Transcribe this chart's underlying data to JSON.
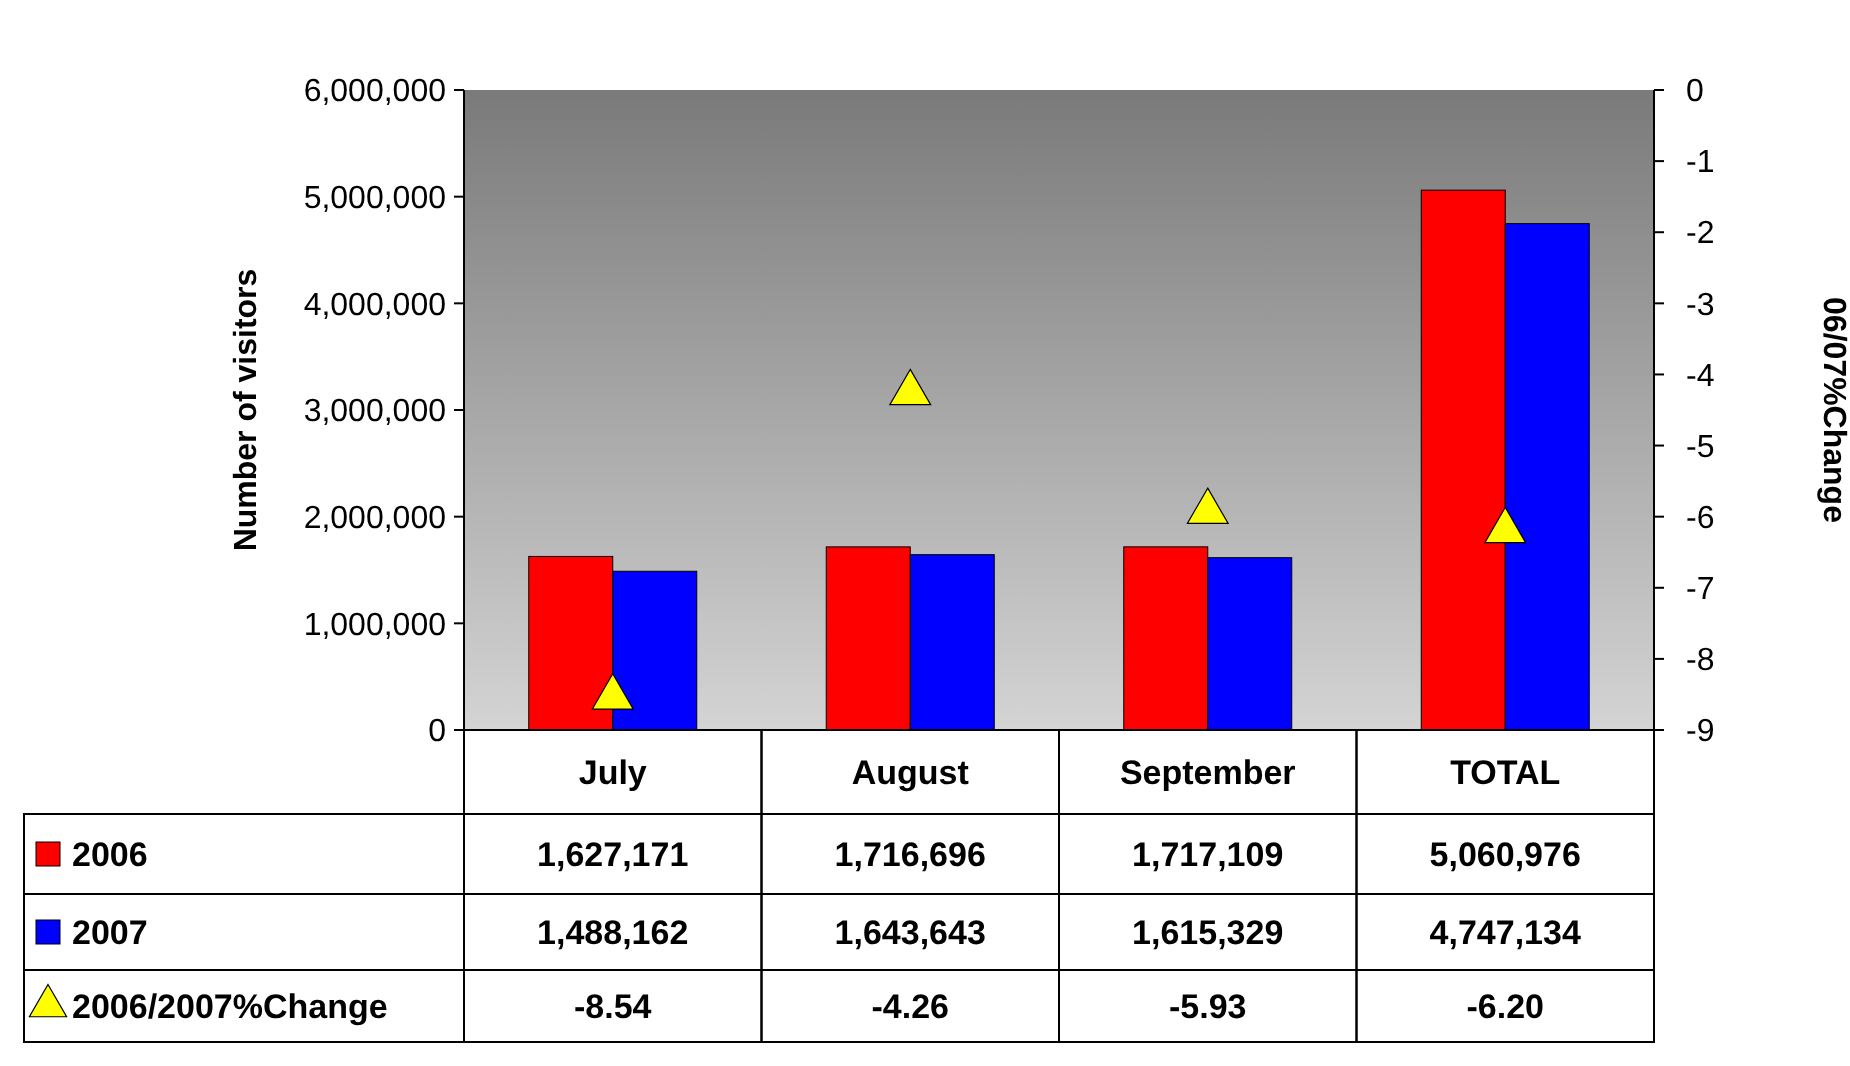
{
  "chart_data": {
    "type": "bar",
    "ylabel": "Number of visitors",
    "y2label": "06/07%Change",
    "categories": [
      "July",
      "August",
      "September",
      "TOTAL"
    ],
    "series": [
      {
        "name": "2006",
        "color": "#ff0000",
        "values": [
          1627171,
          1716696,
          1717109,
          5060976
        ],
        "value_labels": [
          "1,627,171",
          "1,716,696",
          "1,717,109",
          "5,060,976"
        ]
      },
      {
        "name": "2007",
        "color": "#0000ff",
        "values": [
          1488162,
          1643643,
          1615329,
          4747134
        ],
        "value_labels": [
          "1,488,162",
          "1,643,643",
          "1,615,329",
          "4,747,134"
        ]
      },
      {
        "name": "2006/2007%Change",
        "type": "scatter",
        "axis": "y2",
        "marker": "triangle",
        "color": "#ffff00",
        "values": [
          -8.54,
          -4.26,
          -5.93,
          -6.2
        ],
        "value_labels": [
          "-8.54",
          "-4.26",
          "-5.93",
          "-6.20"
        ]
      }
    ],
    "ylim": [
      0,
      6000000
    ],
    "yticks": [
      {
        "value": 0,
        "label": "0"
      },
      {
        "value": 1000000,
        "label": "1,000,000"
      },
      {
        "value": 2000000,
        "label": "2,000,000"
      },
      {
        "value": 3000000,
        "label": "3,000,000"
      },
      {
        "value": 4000000,
        "label": "4,000,000"
      },
      {
        "value": 5000000,
        "label": "5,000,000"
      },
      {
        "value": 6000000,
        "label": "6,000,000"
      }
    ],
    "y2lim": [
      -9,
      0
    ],
    "y2ticks": [
      0,
      -1,
      -2,
      -3,
      -4,
      -5,
      -6,
      -7,
      -8,
      -9
    ],
    "legend": "bottom",
    "grid": false
  }
}
